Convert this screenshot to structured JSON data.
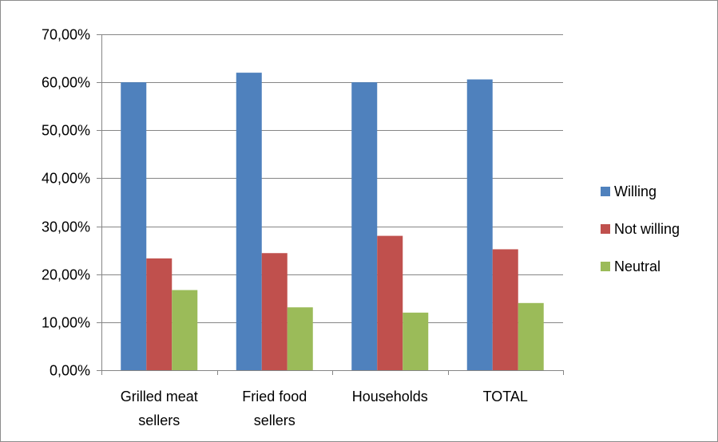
{
  "chart_data": {
    "type": "bar",
    "categories": [
      [
        "Grilled meat",
        "sellers"
      ],
      [
        "Fried food",
        "sellers"
      ],
      [
        "Households"
      ],
      [
        "TOTAL"
      ]
    ],
    "series": [
      {
        "name": "Willing",
        "color": "#4f81bd",
        "values": [
          60.0,
          62.0,
          60.0,
          60.6
        ]
      },
      {
        "name": "Not willing",
        "color": "#c0504d",
        "values": [
          23.3,
          24.4,
          28.0,
          25.2
        ]
      },
      {
        "name": "Neutral",
        "color": "#9bbb59",
        "values": [
          16.7,
          13.1,
          12.0,
          14.0
        ]
      }
    ],
    "ylim": [
      0,
      70
    ],
    "yticks": [
      0,
      10,
      20,
      30,
      40,
      50,
      60,
      70
    ],
    "ytick_labels": [
      "0,00%",
      "10,00%",
      "20,00%",
      "30,00%",
      "40,00%",
      "50,00%",
      "60,00%",
      "70,00%"
    ],
    "grid": true,
    "legend_position": "right",
    "title": "",
    "xlabel": "",
    "ylabel": ""
  }
}
